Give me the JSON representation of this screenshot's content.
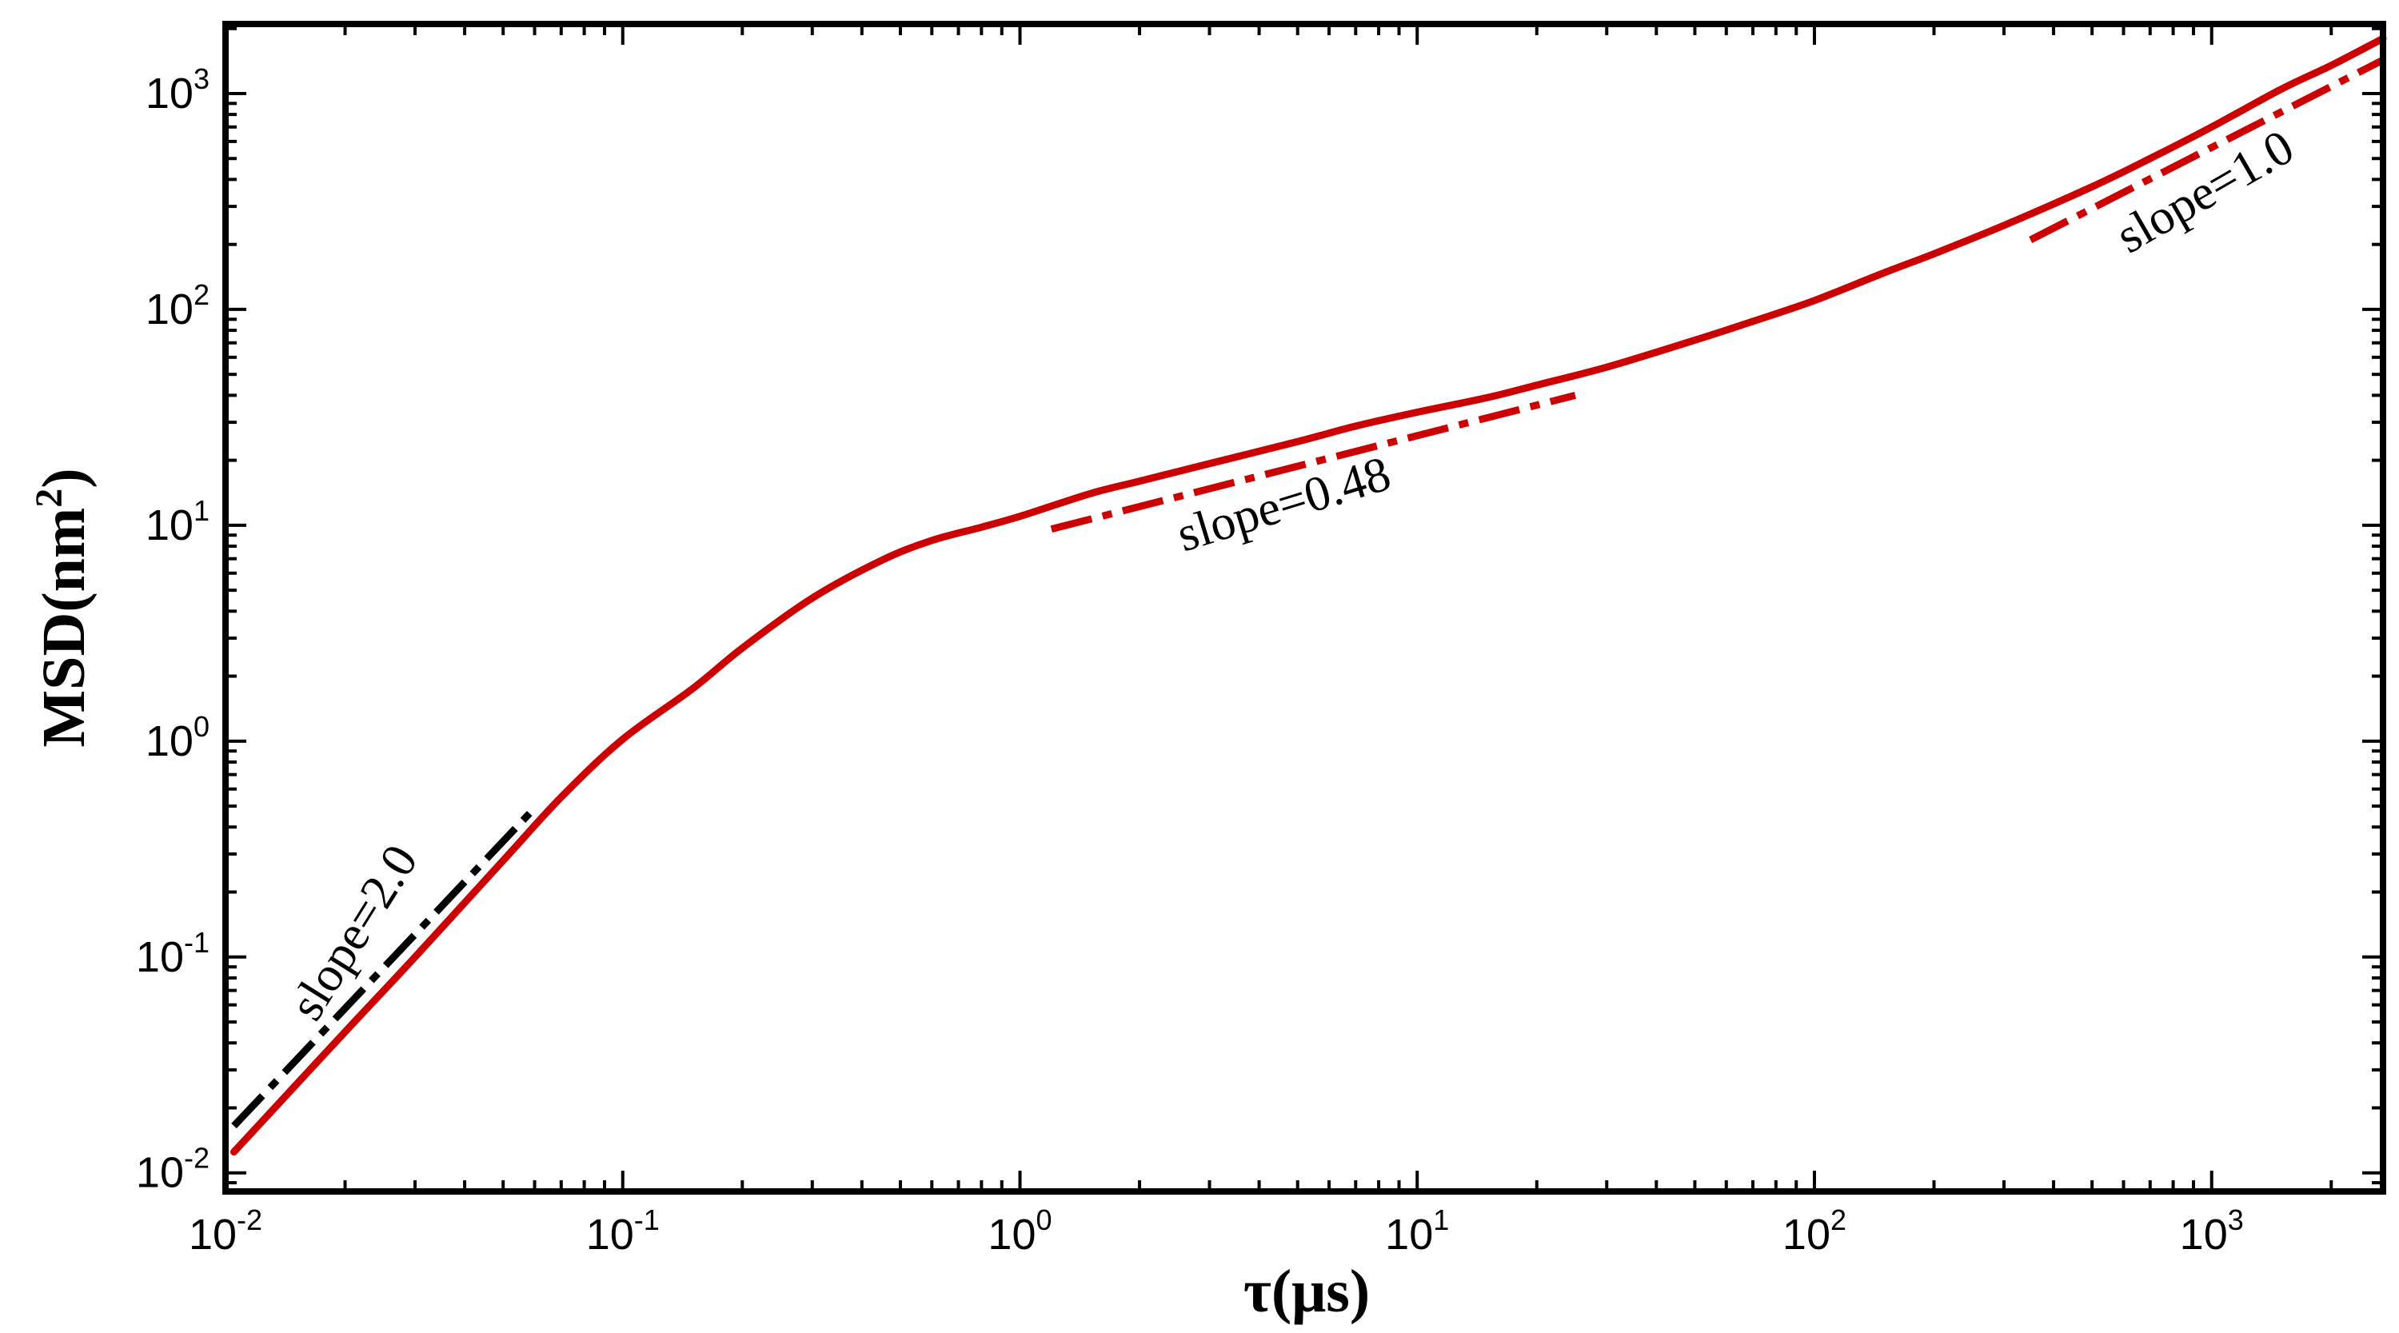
{
  "chart_data": {
    "type": "line",
    "title": "",
    "xlabel": "τ(μs)",
    "ylabel": "MSD(nm²)",
    "ylabel_parts": {
      "main": "MSD(nm",
      "sup": "2",
      "tail": ")"
    },
    "xscale": "log",
    "yscale": "log",
    "xlim": [
      0.01,
      2700
    ],
    "ylim": [
      0.0082,
      2100
    ],
    "grid": false,
    "legend": "none",
    "x_tick_labels": [
      {
        "base": "10",
        "exp": "-2",
        "value": 0.01
      },
      {
        "base": "10",
        "exp": "-1",
        "value": 0.1
      },
      {
        "base": "10",
        "exp": "0",
        "value": 1
      },
      {
        "base": "10",
        "exp": "1",
        "value": 10
      },
      {
        "base": "10",
        "exp": "2",
        "value": 100
      },
      {
        "base": "10",
        "exp": "3",
        "value": 1000
      }
    ],
    "y_tick_labels": [
      {
        "base": "10",
        "exp": "-2",
        "value": 0.01
      },
      {
        "base": "10",
        "exp": "-1",
        "value": 0.1
      },
      {
        "base": "10",
        "exp": "0",
        "value": 1
      },
      {
        "base": "10",
        "exp": "1",
        "value": 10
      },
      {
        "base": "10",
        "exp": "2",
        "value": 100
      },
      {
        "base": "10",
        "exp": "3",
        "value": 1000
      }
    ],
    "series": [
      {
        "color": "#cc0000",
        "style": "solid",
        "x": [
          0.0105,
          0.02,
          0.03,
          0.05,
          0.07,
          0.1,
          0.15,
          0.2,
          0.3,
          0.45,
          0.6,
          0.8,
          1.0,
          1.5,
          2,
          3,
          5,
          7,
          10,
          15,
          20,
          30,
          50,
          70,
          100,
          150,
          200,
          300,
          500,
          700,
          1000,
          1500,
          2000,
          2700
        ],
        "y": [
          0.0125,
          0.045,
          0.1,
          0.28,
          0.55,
          1.02,
          1.75,
          2.7,
          4.6,
          6.9,
          8.5,
          9.8,
          11.0,
          14.0,
          16.0,
          19.3,
          24.4,
          28.8,
          33.4,
          39.0,
          44.6,
          54.0,
          72.0,
          88.0,
          110.0,
          148.0,
          181.0,
          245.0,
          370.0,
          500.0,
          700.0,
          1050.0,
          1350.0,
          1800.0
        ]
      }
    ],
    "reference_lines": [
      {
        "label": "slope=2.0",
        "slope": 2.0,
        "color": "#000000",
        "style": "dashdot",
        "x": [
          0.0105,
          0.06
        ],
        "y": [
          0.0165,
          0.49
        ]
      },
      {
        "label": "slope=0.48",
        "slope": 0.48,
        "color": "#cc0000",
        "style": "dashdot",
        "x": [
          1.2,
          25
        ],
        "y": [
          9.6,
          40
        ]
      },
      {
        "label": "slope=1.0",
        "slope": 1.0,
        "color": "#cc0000",
        "style": "dashdot",
        "x": [
          350,
          2700
        ],
        "y": [
          210,
          1430
        ]
      }
    ]
  }
}
